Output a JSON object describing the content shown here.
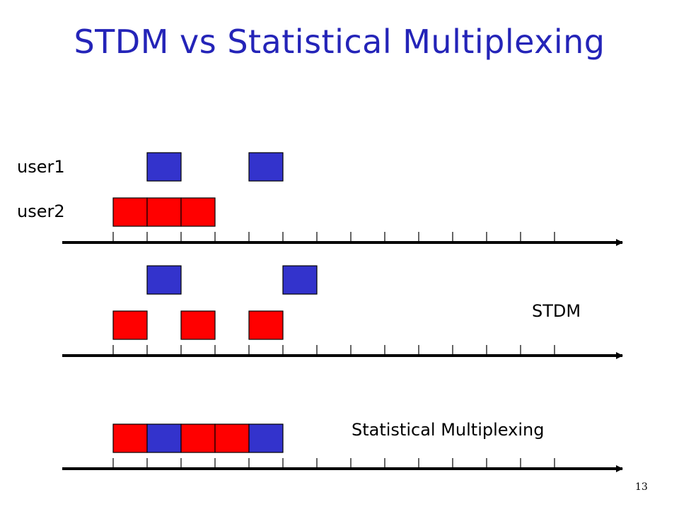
{
  "slide": {
    "title": "STDM vs Statistical Multiplexing",
    "page_number": "13"
  },
  "labels": {
    "user1": "user1",
    "user2": "user2",
    "stdm": "STDM",
    "statmux": "Statistical Multiplexing"
  },
  "colors": {
    "title": "#2424b8",
    "user1_slot": "#3333cc",
    "user2_slot": "#ff0000",
    "axis": "#000000"
  },
  "diagram": {
    "num_slots": 14,
    "timelines": [
      {
        "name": "input",
        "rows": [
          {
            "user": "user1",
            "slots": [
              1,
              4
            ]
          },
          {
            "user": "user2",
            "slots": [
              0,
              1,
              2
            ]
          }
        ]
      },
      {
        "name": "stdm",
        "rows": [
          {
            "user": "user1",
            "slots": [
              1,
              5
            ]
          },
          {
            "user": "user2",
            "slots": [
              0,
              2,
              4
            ]
          }
        ]
      },
      {
        "name": "statmux",
        "rows": [
          {
            "user": "mixed",
            "slots": [
              {
                "slot": 0,
                "user": "user2"
              },
              {
                "slot": 1,
                "user": "user1"
              },
              {
                "slot": 2,
                "user": "user2"
              },
              {
                "slot": 3,
                "user": "user2"
              },
              {
                "slot": 4,
                "user": "user1"
              }
            ]
          }
        ]
      }
    ]
  }
}
